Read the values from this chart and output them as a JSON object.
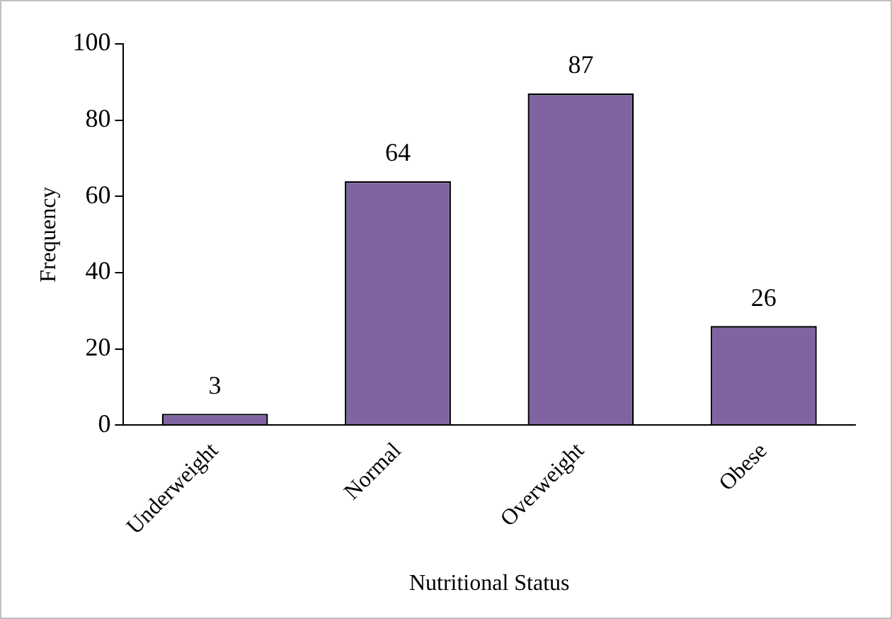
{
  "chart_data": {
    "type": "bar",
    "xlabel": "Nutritional Status",
    "ylabel": "Frequency",
    "categories": [
      "Underweight",
      "Normal",
      "Overweight",
      "Obese"
    ],
    "values": [
      3,
      64,
      87,
      26
    ],
    "color": "#8064a2",
    "ylim": [
      0,
      100
    ],
    "yticks": [
      0,
      20,
      40,
      60,
      80,
      100
    ],
    "grid": false,
    "legend": false,
    "data_labels": true
  }
}
